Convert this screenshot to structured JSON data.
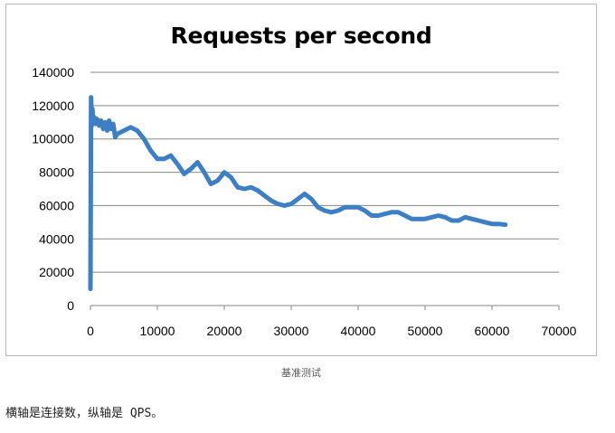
{
  "caption": "基准测试",
  "description": "横轴是连接数，纵轴是 QPS。",
  "colors": {
    "series": "#3d7fc4",
    "grid": "#888888",
    "frame": "#b8b8b8"
  },
  "chart_data": {
    "type": "line",
    "title": "Requests per second",
    "xlabel": "",
    "ylabel": "",
    "xlim": [
      0,
      70000
    ],
    "ylim": [
      0,
      140000
    ],
    "xticks": [
      0,
      10000,
      20000,
      30000,
      40000,
      50000,
      60000,
      70000
    ],
    "yticks": [
      0,
      20000,
      40000,
      60000,
      80000,
      100000,
      120000,
      140000
    ],
    "grid": true,
    "legend": "none",
    "series": [
      {
        "x": [
          0,
          100,
          200,
          300,
          400,
          600,
          800,
          1000,
          1300,
          1600,
          1900,
          2200,
          2500,
          2800,
          3100,
          3400,
          3700,
          4000,
          5000,
          6000,
          7000,
          8000,
          9000,
          10000,
          11000,
          12000,
          13000,
          14000,
          15000,
          16000,
          17000,
          18000,
          19000,
          20000,
          21000,
          22000,
          23000,
          24000,
          25000,
          26000,
          27000,
          28000,
          29000,
          30000,
          31000,
          32000,
          33000,
          34000,
          35000,
          36000,
          37000,
          38000,
          39000,
          40000,
          41000,
          42000,
          43000,
          44000,
          45000,
          46000,
          47000,
          48000,
          49000,
          50000,
          51000,
          52000,
          53000,
          54000,
          55000,
          56000,
          57000,
          58000,
          59000,
          60000,
          61000,
          62000
        ],
        "y": [
          10000,
          125000,
          108000,
          118000,
          110000,
          113000,
          109000,
          112000,
          108000,
          111000,
          106000,
          110000,
          105000,
          111000,
          106000,
          109000,
          101000,
          103000,
          105000,
          107000,
          105000,
          100000,
          93000,
          88000,
          88000,
          90000,
          85000,
          79000,
          82000,
          86000,
          80000,
          73000,
          75000,
          80000,
          77000,
          71000,
          70000,
          71000,
          69000,
          66000,
          63000,
          61000,
          60000,
          61000,
          64000,
          67000,
          64000,
          59000,
          57000,
          56000,
          57000,
          59000,
          59000,
          59000,
          57000,
          54000,
          54000,
          55000,
          56000,
          56000,
          54000,
          52000,
          52000,
          52000,
          53000,
          54000,
          53000,
          51000,
          51000,
          53000,
          52000,
          51000,
          50000,
          49000,
          49000,
          48500
        ]
      }
    ]
  }
}
